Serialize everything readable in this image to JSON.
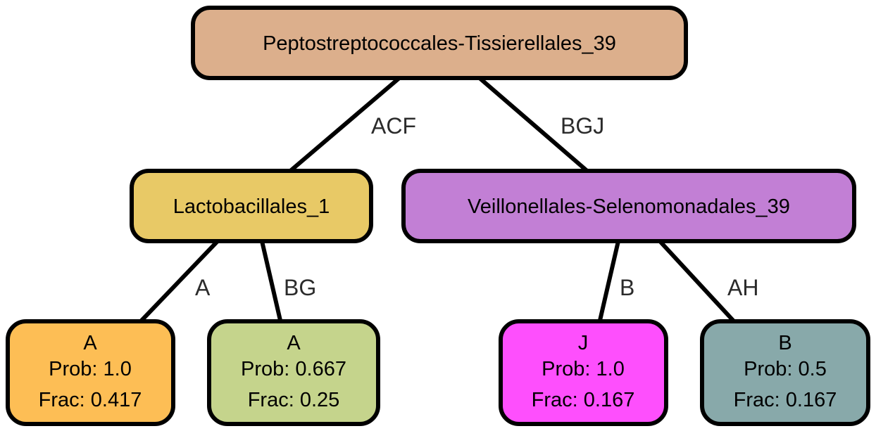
{
  "nodes": {
    "root": {
      "label": "Peptostreptococcales-Tissierellales_39",
      "color": "#dcaf8c"
    },
    "lacto": {
      "label": "Lactobacillales_1",
      "color": "#e8c966"
    },
    "veil": {
      "label": "Veillonellales-Selenomonadales_39",
      "color": "#c27fd5"
    },
    "leaf1": {
      "name": "A",
      "prob": "Prob: 1.0",
      "frac": "Frac: 0.417",
      "color": "#fdbe55"
    },
    "leaf2": {
      "name": "A",
      "prob": "Prob: 0.667",
      "frac": "Frac: 0.25",
      "color": "#c5d48c"
    },
    "leaf3": {
      "name": "J",
      "prob": "Prob: 1.0",
      "frac": "Frac: 0.167",
      "color": "#fe4ffd"
    },
    "leaf4": {
      "name": "B",
      "prob": "Prob: 0.5",
      "frac": "Frac: 0.167",
      "color": "#88a9aa"
    }
  },
  "edges": {
    "root_lacto": "ACF",
    "root_veil": "BGJ",
    "lacto_leaf1": "A",
    "lacto_leaf2": "BG",
    "veil_leaf3": "B",
    "veil_leaf4": "AH"
  }
}
